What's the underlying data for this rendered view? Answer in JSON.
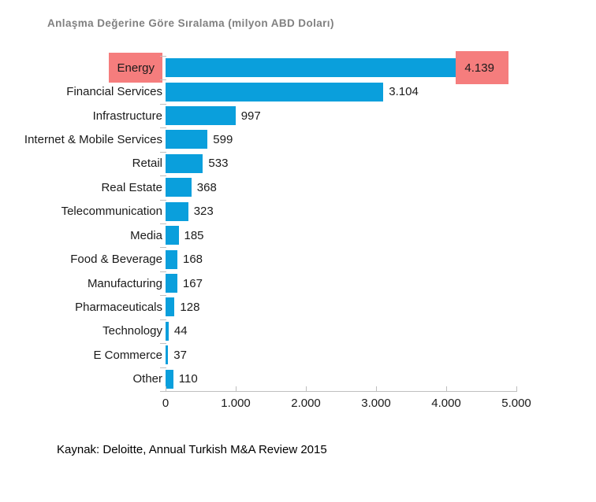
{
  "title": "Anlaşma Değerine Göre Sıralama (milyon ABD Doları)",
  "source": "Kaynak: Deloitte, Annual Turkish M&A Review 2015",
  "colors": {
    "bar": "#0a9fdc",
    "highlight": "#f57d7d",
    "axis": "#bfbfbf",
    "title_text": "#808080",
    "label_text": "#1a1a1a"
  },
  "chart_data": {
    "type": "bar",
    "orientation": "horizontal",
    "title": "Anlaşma Değerine Göre Sıralama (milyon ABD Doları)",
    "categories": [
      "Energy",
      "Financial Services",
      "Infrastructure",
      "Internet & Mobile Services",
      "Retail",
      "Real Estate",
      "Telecommunication",
      "Media",
      "Food & Beverage",
      "Manufacturing",
      "Pharmaceuticals",
      "Technology",
      "E Commerce",
      "Other"
    ],
    "values": [
      4139,
      3104,
      997,
      599,
      533,
      368,
      323,
      185,
      168,
      167,
      128,
      44,
      37,
      110
    ],
    "value_labels": [
      "4.139",
      "3.104",
      "997",
      "599",
      "533",
      "368",
      "323",
      "185",
      "168",
      "167",
      "128",
      "44",
      "37",
      "110"
    ],
    "highlight_category": "Energy",
    "xlabel": "",
    "ylabel": "",
    "xlim": [
      0,
      5000
    ],
    "x_ticks": [
      0,
      1000,
      2000,
      3000,
      4000,
      5000
    ],
    "x_tick_labels": [
      "0",
      "1.000",
      "2.000",
      "3.000",
      "4.000",
      "5.000"
    ],
    "legend": "none",
    "grid": "off"
  }
}
